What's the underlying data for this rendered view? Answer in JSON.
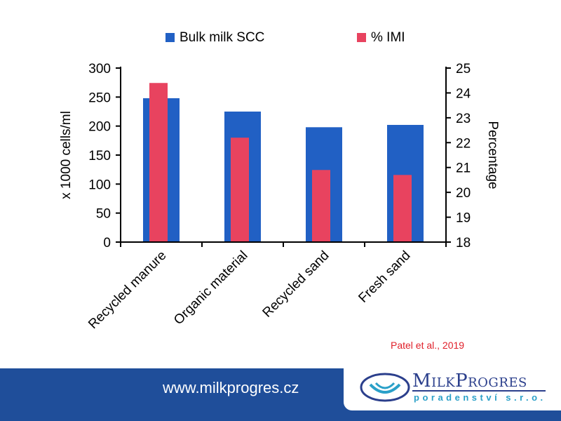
{
  "chart_data": {
    "type": "bar",
    "categories": [
      "Recycled manure",
      "Organic material",
      "Recycled sand",
      "Fresh sand"
    ],
    "series": [
      {
        "name": "Bulk milk SCC",
        "axis": "left",
        "color": "#2160c4",
        "values": [
          248,
          225,
          198,
          202
        ]
      },
      {
        "name": "% IMI",
        "axis": "right",
        "color": "#e8435f",
        "values": [
          24.4,
          22.2,
          20.9,
          20.7
        ]
      }
    ],
    "ylabel": "x 1000 cells/ml",
    "ylim": [
      0,
      300
    ],
    "yticks": [
      "0",
      "50",
      "100",
      "150",
      "200",
      "250",
      "300"
    ],
    "y2label": "Percentage",
    "y2lim": [
      18,
      25
    ],
    "y2ticks": [
      "18",
      "19",
      "20",
      "21",
      "22",
      "23",
      "24",
      "25"
    ],
    "legend_position": "top",
    "grid": false
  },
  "citation": "Patel et al., 2019",
  "footer": {
    "url": "www.milkprogres.cz",
    "logo_name": "MilkProgres",
    "logo_sub": "poradenství s.r.o."
  }
}
